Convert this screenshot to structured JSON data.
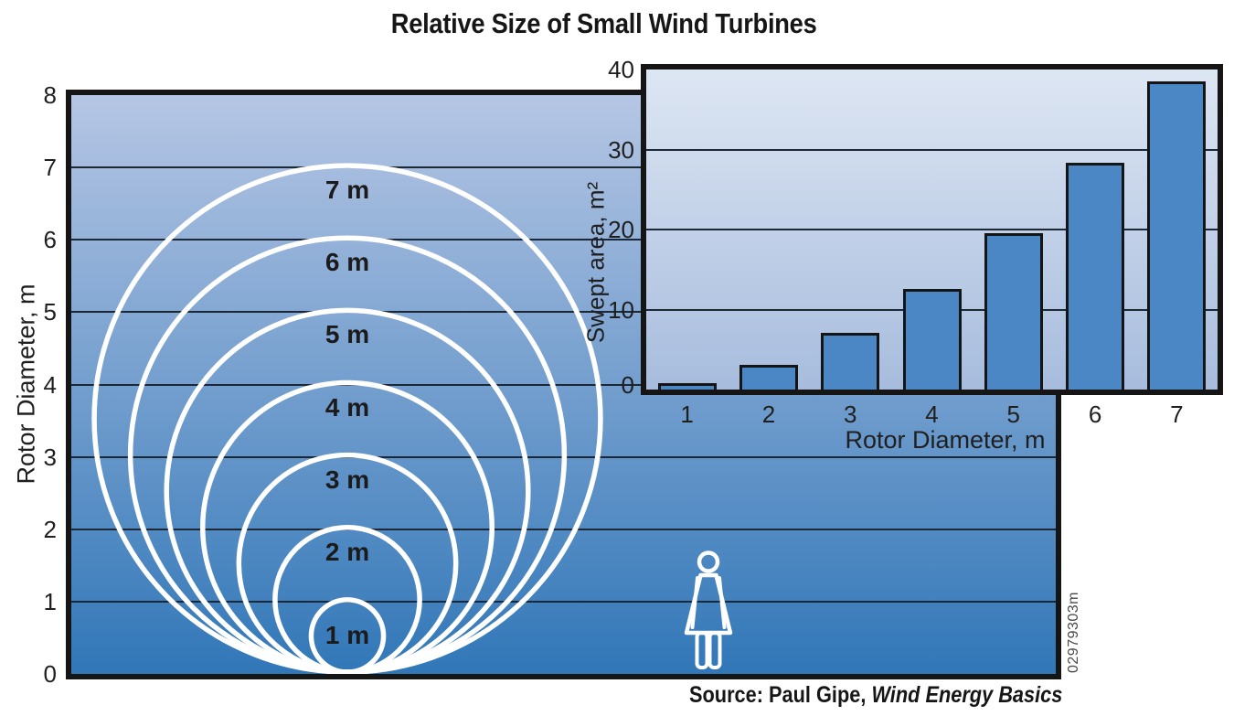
{
  "title": "Relative Size of Small Wind Turbines",
  "source": {
    "prefix": "Source: Paul Gipe, ",
    "work": "Wind Energy Basics"
  },
  "figure_id": "02979303m",
  "colors": {
    "main_gradient_top": "#b6c6e4",
    "main_gradient_bottom": "#3177b8",
    "inset_gradient_top": "#dde6f3",
    "inset_gradient_bottom": "#a7bcdd",
    "bar_fill": "#4b87c4",
    "circle_stroke": "#ffffff",
    "border": "#151515"
  },
  "main_chart": {
    "ylabel": "Rotor Diameter, m",
    "yticks": [
      8,
      7,
      6,
      5,
      4,
      3,
      2,
      1,
      0
    ],
    "circle_labels": [
      "1 m",
      "2 m",
      "3 m",
      "4 m",
      "5 m",
      "6 m",
      "7 m"
    ]
  },
  "inset_chart": {
    "ylabel": "Swept area, m²",
    "xlabel": "Rotor Diameter, m",
    "yticks": [
      40,
      30,
      20,
      10,
      0
    ],
    "xticks": [
      1,
      2,
      3,
      4,
      5,
      6,
      7
    ]
  },
  "chart_data": [
    {
      "type": "circle-size-diagram",
      "title": "Relative Size of Small Wind Turbines",
      "ylabel": "Rotor Diameter, m",
      "ylim": [
        0,
        8
      ],
      "circle_diameters_m": [
        1,
        2,
        3,
        4,
        5,
        6,
        7
      ],
      "circle_labels": [
        "1 m",
        "2 m",
        "3 m",
        "4 m",
        "5 m",
        "6 m",
        "7 m"
      ],
      "human_figure_height_m": 1.65,
      "grid": true
    },
    {
      "type": "bar",
      "categories": [
        1,
        2,
        3,
        4,
        5,
        6,
        7
      ],
      "values": [
        0.8,
        3.1,
        7.1,
        12.6,
        19.6,
        28.3,
        38.5
      ],
      "xlabel": "Rotor Diameter, m",
      "ylabel": "Swept area, m²",
      "ylim": [
        0,
        40
      ],
      "gridlines": [
        10,
        20,
        30
      ],
      "legend": "none"
    }
  ]
}
